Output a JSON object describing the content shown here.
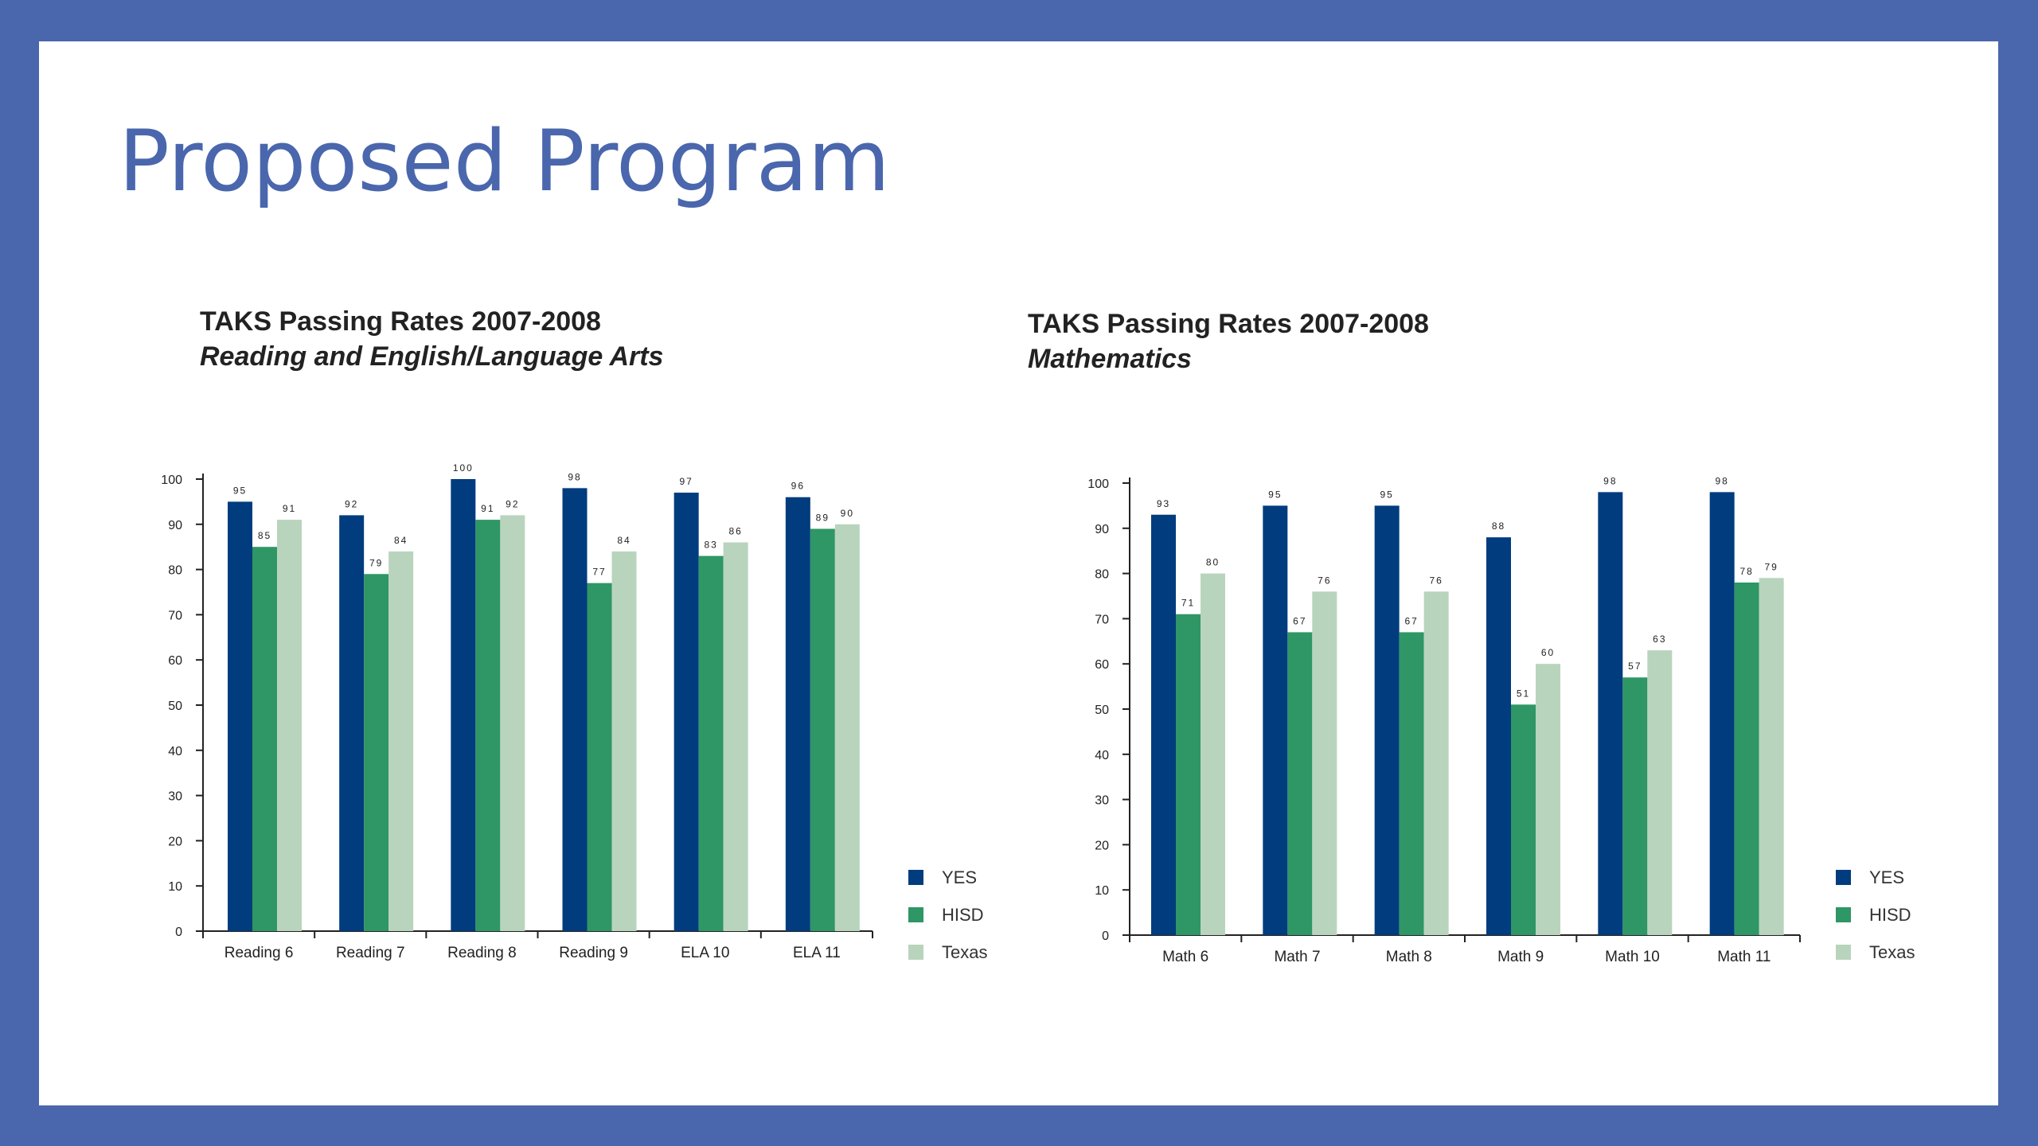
{
  "slide": {
    "title": "Proposed Program",
    "background_color": "#4a66ad",
    "title_color": "#4a66ad"
  },
  "chart_data": [
    {
      "type": "bar",
      "title": "TAKS Passing Rates 2007-2008",
      "subtitle": "Reading and English/Language Arts",
      "xlabel": "",
      "ylabel": "",
      "categories": [
        "Reading 6",
        "Reading 7",
        "Reading 8",
        "Reading 9",
        "ELA 10",
        "ELA 11"
      ],
      "series": [
        {
          "name": "YES",
          "color": "#003c7e",
          "values": [
            95,
            92,
            100,
            98,
            97,
            96
          ]
        },
        {
          "name": "HISD",
          "color": "#2f9665",
          "values": [
            85,
            79,
            91,
            77,
            83,
            89
          ]
        },
        {
          "name": "Texas",
          "color": "#b9d4bd",
          "values": [
            91,
            84,
            92,
            84,
            86,
            90
          ]
        }
      ],
      "yticks": [
        0,
        10,
        20,
        30,
        40,
        50,
        60,
        70,
        80,
        90,
        100
      ],
      "ylim": [
        0,
        100
      ],
      "grid": false,
      "legend_position": "bottom-right"
    },
    {
      "type": "bar",
      "title": "TAKS Passing Rates 2007-2008",
      "subtitle": "Mathematics",
      "xlabel": "",
      "ylabel": "",
      "categories": [
        "Math 6",
        "Math 7",
        "Math 8",
        "Math 9",
        "Math 10",
        "Math 11"
      ],
      "series": [
        {
          "name": "YES",
          "color": "#003c7e",
          "values": [
            93,
            95,
            95,
            88,
            98,
            98
          ]
        },
        {
          "name": "HISD",
          "color": "#2f9665",
          "values": [
            71,
            67,
            67,
            51,
            57,
            78
          ]
        },
        {
          "name": "Texas",
          "color": "#b9d4bd",
          "values": [
            80,
            76,
            76,
            60,
            63,
            79
          ]
        }
      ],
      "yticks": [
        0,
        10,
        20,
        30,
        40,
        50,
        60,
        70,
        80,
        90,
        100
      ],
      "ylim": [
        0,
        100
      ],
      "grid": false,
      "legend_position": "bottom-right"
    }
  ]
}
